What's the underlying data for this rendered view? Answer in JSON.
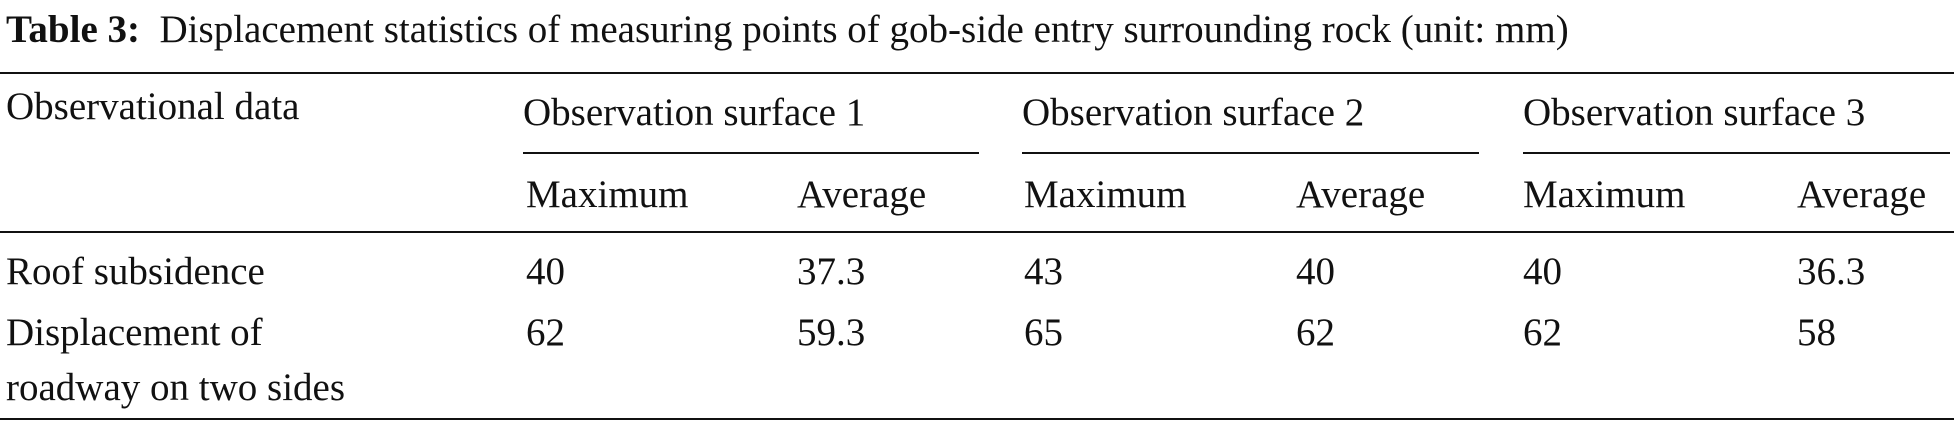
{
  "table": {
    "label": "Table 3:",
    "title": "Displacement statistics of measuring points of gob-side entry surrounding rock (unit: mm)",
    "corner": "Observational data",
    "groups": [
      "Observation surface 1",
      "Observation surface 2",
      "Observation surface 3"
    ],
    "subheaders": [
      "Maximum",
      "Average",
      "Maximum",
      "Average",
      "Maximum",
      "Average"
    ],
    "rows": [
      {
        "label": [
          "Roof subsidence"
        ],
        "values": [
          40,
          37.3,
          43,
          40,
          40,
          36.3
        ]
      },
      {
        "label": [
          "Displacement of",
          "roadway on two sides"
        ],
        "values": [
          62,
          59.3,
          65,
          62,
          62,
          58
        ]
      }
    ]
  }
}
